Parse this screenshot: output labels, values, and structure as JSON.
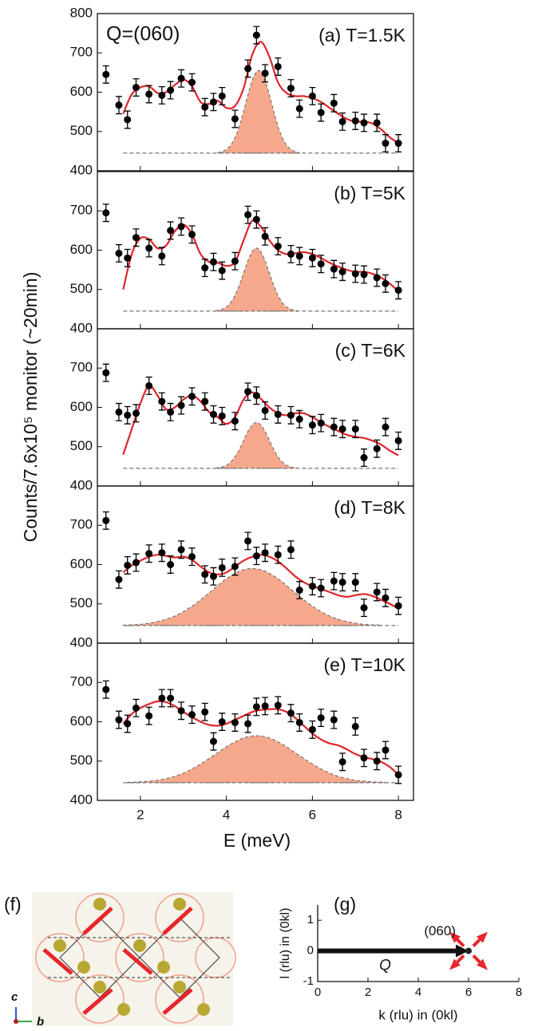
{
  "figure": {
    "ylabel": "Counts/7.6x10⁵ monitor (~20min)",
    "annotation": "Q=(060)",
    "xaxis": {
      "label": "E (meV)",
      "lim": [
        1,
        8.35
      ],
      "ticks": [
        2,
        4,
        6,
        8
      ]
    }
  },
  "panel_f": {
    "label": "(f)",
    "axis_c": "c",
    "axis_b": "b"
  },
  "chart_data": [
    {
      "type": "scatter",
      "label": "(a) T=1.5K",
      "ylim": [
        400,
        800
      ],
      "yticks": [
        400,
        500,
        600,
        700,
        800
      ],
      "baseline": 445,
      "points": {
        "color": "#000000",
        "yerr": 22,
        "x": [
          1.2,
          1.5,
          1.7,
          1.9,
          2.2,
          2.5,
          2.7,
          2.95,
          3.2,
          3.5,
          3.7,
          3.9,
          4.2,
          4.5,
          4.7,
          4.9,
          5.2,
          5.5,
          5.7,
          6.0,
          6.2,
          6.5,
          6.7,
          7.0,
          7.2,
          7.5,
          7.7,
          8.0
        ],
        "y": [
          645,
          567,
          530,
          612,
          595,
          592,
          605,
          635,
          625,
          562,
          575,
          590,
          532,
          660,
          745,
          648,
          665,
          610,
          558,
          590,
          548,
          572,
          525,
          527,
          522,
          522,
          470,
          470
        ]
      },
      "fit": {
        "color": "#e0242a",
        "x": [
          1.6,
          1.8,
          2.0,
          2.2,
          2.4,
          2.6,
          2.8,
          3.0,
          3.2,
          3.4,
          3.6,
          3.8,
          4.0,
          4.2,
          4.4,
          4.6,
          4.8,
          5.0,
          5.2,
          5.4,
          5.6,
          5.8,
          6.0,
          6.2,
          6.4,
          6.6,
          6.8,
          7.0,
          7.2,
          7.4,
          7.6,
          7.8,
          8.0
        ],
        "y": [
          545,
          595,
          612,
          615,
          598,
          600,
          618,
          632,
          615,
          575,
          570,
          578,
          560,
          565,
          610,
          695,
          728,
          690,
          625,
          598,
          590,
          590,
          585,
          575,
          560,
          545,
          532,
          525,
          525,
          520,
          505,
          485,
          470
        ]
      },
      "peak": {
        "color": "#f6a88c",
        "x": [
          3.8,
          3.9,
          4.0,
          4.1,
          4.2,
          4.3,
          4.4,
          4.5,
          4.6,
          4.7,
          4.8,
          4.9,
          5.0,
          5.1,
          5.2,
          5.3,
          5.4,
          5.5,
          5.6,
          5.7
        ],
        "y": [
          446,
          449,
          454,
          465,
          484,
          513,
          551,
          593,
          630,
          652,
          652,
          630,
          593,
          551,
          513,
          484,
          465,
          454,
          449,
          446
        ]
      }
    },
    {
      "type": "scatter",
      "label": "(b) T=5K",
      "ylim": [
        400,
        800
      ],
      "yticks": [
        400,
        500,
        600,
        700
      ],
      "baseline": 445,
      "points": {
        "color": "#000000",
        "yerr": 22,
        "x": [
          1.2,
          1.5,
          1.7,
          1.9,
          2.2,
          2.5,
          2.7,
          2.95,
          3.2,
          3.5,
          3.7,
          3.9,
          4.2,
          4.5,
          4.7,
          4.9,
          5.2,
          5.5,
          5.7,
          6.0,
          6.2,
          6.5,
          6.7,
          7.0,
          7.2,
          7.5,
          7.7,
          8.0
        ],
        "y": [
          695,
          592,
          580,
          632,
          605,
          585,
          650,
          660,
          640,
          555,
          570,
          548,
          572,
          690,
          678,
          635,
          610,
          590,
          585,
          580,
          565,
          552,
          545,
          540,
          538,
          530,
          515,
          498
        ]
      },
      "fit": {
        "color": "#e0242a",
        "x": [
          1.6,
          1.8,
          2.0,
          2.2,
          2.4,
          2.6,
          2.8,
          3.0,
          3.2,
          3.4,
          3.6,
          3.8,
          4.0,
          4.2,
          4.4,
          4.6,
          4.8,
          5.0,
          5.2,
          5.4,
          5.6,
          5.8,
          6.0,
          6.2,
          6.4,
          6.6,
          6.8,
          7.0,
          7.2,
          7.4,
          7.6,
          7.8,
          8.0
        ],
        "y": [
          500,
          590,
          630,
          628,
          605,
          612,
          648,
          665,
          640,
          590,
          570,
          568,
          560,
          570,
          625,
          675,
          660,
          625,
          600,
          590,
          592,
          595,
          590,
          580,
          568,
          558,
          550,
          545,
          545,
          540,
          530,
          515,
          495
        ]
      },
      "peak": {
        "color": "#f6a88c",
        "x": [
          3.75,
          3.85,
          3.95,
          4.05,
          4.15,
          4.25,
          4.35,
          4.45,
          4.55,
          4.65,
          4.75,
          4.85,
          4.95,
          5.05,
          5.15,
          5.25,
          5.35,
          5.45,
          5.55,
          5.65
        ],
        "y": [
          446,
          448,
          452,
          460,
          475,
          497,
          526,
          558,
          586,
          603,
          603,
          586,
          558,
          526,
          497,
          475,
          460,
          452,
          448,
          446
        ]
      }
    },
    {
      "type": "scatter",
      "label": "(c) T=6K",
      "ylim": [
        400,
        800
      ],
      "yticks": [
        400,
        500,
        600,
        700
      ],
      "baseline": 445,
      "points": {
        "color": "#000000",
        "yerr": 22,
        "x": [
          1.2,
          1.5,
          1.7,
          1.9,
          2.2,
          2.5,
          2.7,
          2.95,
          3.2,
          3.5,
          3.7,
          3.9,
          4.2,
          4.5,
          4.7,
          4.9,
          5.2,
          5.5,
          5.7,
          6.0,
          6.2,
          6.5,
          6.7,
          7.0,
          7.2,
          7.5,
          7.7,
          8.0
        ],
        "y": [
          688,
          588,
          580,
          585,
          655,
          615,
          588,
          605,
          628,
          615,
          582,
          578,
          565,
          640,
          630,
          592,
          582,
          580,
          570,
          555,
          560,
          550,
          545,
          545,
          472,
          495,
          550,
          515
        ]
      },
      "fit": {
        "color": "#e0242a",
        "x": [
          1.6,
          1.8,
          2.0,
          2.2,
          2.4,
          2.6,
          2.8,
          3.0,
          3.2,
          3.4,
          3.6,
          3.8,
          4.0,
          4.2,
          4.4,
          4.6,
          4.8,
          5.0,
          5.2,
          5.4,
          5.6,
          5.8,
          6.0,
          6.2,
          6.4,
          6.6,
          6.8,
          7.0,
          7.2,
          7.4,
          7.6,
          7.8,
          8.0
        ],
        "y": [
          480,
          545,
          610,
          655,
          630,
          595,
          600,
          620,
          630,
          615,
          588,
          575,
          558,
          575,
          620,
          638,
          622,
          600,
          585,
          580,
          585,
          585,
          575,
          562,
          550,
          540,
          530,
          525,
          522,
          515,
          505,
          490,
          478
        ]
      },
      "peak": {
        "color": "#f6a88c",
        "x": [
          3.75,
          3.85,
          3.95,
          4.05,
          4.15,
          4.25,
          4.35,
          4.45,
          4.55,
          4.65,
          4.75,
          4.85,
          4.95,
          5.05,
          5.15,
          5.25,
          5.35,
          5.45,
          5.55,
          5.65
        ],
        "y": [
          446,
          447,
          450,
          456,
          467,
          483,
          504,
          528,
          548,
          560,
          560,
          548,
          528,
          504,
          483,
          467,
          456,
          450,
          447,
          446
        ]
      }
    },
    {
      "type": "scatter",
      "label": "(d) T=8K",
      "ylim": [
        400,
        800
      ],
      "yticks": [
        400,
        500,
        600,
        700
      ],
      "baseline": 445,
      "points": {
        "color": "#000000",
        "yerr": 22,
        "x": [
          1.2,
          1.5,
          1.7,
          1.9,
          2.2,
          2.5,
          2.7,
          2.95,
          3.2,
          3.5,
          3.7,
          3.9,
          4.2,
          4.5,
          4.7,
          4.9,
          5.2,
          5.5,
          5.7,
          6.0,
          6.2,
          6.5,
          6.7,
          7.0,
          7.2,
          7.5,
          7.7,
          8.0
        ],
        "y": [
          712,
          562,
          598,
          605,
          628,
          630,
          600,
          638,
          620,
          575,
          570,
          592,
          595,
          660,
          622,
          630,
          625,
          638,
          535,
          545,
          540,
          558,
          555,
          555,
          490,
          530,
          515,
          495
        ]
      },
      "fit": {
        "color": "#e0242a",
        "x": [
          1.6,
          1.8,
          2.0,
          2.2,
          2.4,
          2.6,
          2.8,
          3.0,
          3.2,
          3.4,
          3.6,
          3.8,
          4.0,
          4.2,
          4.4,
          4.6,
          4.8,
          5.0,
          5.2,
          5.4,
          5.6,
          5.8,
          6.0,
          6.2,
          6.4,
          6.6,
          6.8,
          7.0,
          7.2,
          7.4,
          7.6,
          7.8,
          8.0
        ],
        "y": [
          580,
          598,
          610,
          620,
          625,
          622,
          618,
          620,
          612,
          595,
          580,
          575,
          580,
          595,
          610,
          620,
          625,
          620,
          608,
          590,
          570,
          555,
          545,
          538,
          530,
          522,
          518,
          522,
          525,
          520,
          510,
          500,
          488
        ]
      },
      "peak": {
        "color": "#f6a88c",
        "x": [
          1.6,
          2.0,
          2.4,
          2.8,
          3.2,
          3.6,
          4.0,
          4.4,
          4.8,
          5.2,
          5.6,
          6.0,
          6.4,
          6.8,
          7.2,
          7.6
        ],
        "y": [
          446,
          448,
          455,
          469,
          494,
          528,
          564,
          587,
          587,
          564,
          528,
          494,
          469,
          455,
          448,
          446
        ]
      }
    },
    {
      "type": "scatter",
      "label": "(e) T=10K",
      "ylim": [
        400,
        800
      ],
      "yticks": [
        400,
        500,
        600,
        700
      ],
      "baseline": 445,
      "points": {
        "color": "#000000",
        "yerr": 22,
        "x": [
          1.2,
          1.5,
          1.7,
          1.9,
          2.2,
          2.5,
          2.7,
          2.95,
          3.2,
          3.5,
          3.7,
          3.9,
          4.2,
          4.5,
          4.7,
          4.9,
          5.2,
          5.5,
          5.7,
          6.0,
          6.2,
          6.5,
          6.7,
          7.0,
          7.2,
          7.5,
          7.7,
          8.0
        ],
        "y": [
          682,
          605,
          595,
          635,
          615,
          660,
          660,
          628,
          618,
          625,
          550,
          600,
          598,
          595,
          638,
          640,
          642,
          622,
          598,
          580,
          610,
          605,
          498,
          588,
          508,
          500,
          528,
          465
        ]
      },
      "fit": {
        "color": "#e0242a",
        "x": [
          1.6,
          1.8,
          2.0,
          2.2,
          2.4,
          2.6,
          2.8,
          3.0,
          3.2,
          3.4,
          3.6,
          3.8,
          4.0,
          4.2,
          4.4,
          4.6,
          4.8,
          5.0,
          5.2,
          5.4,
          5.6,
          5.8,
          6.0,
          6.2,
          6.4,
          6.6,
          6.8,
          7.0,
          7.2,
          7.4,
          7.6,
          7.8,
          8.0
        ],
        "y": [
          595,
          620,
          635,
          645,
          652,
          650,
          640,
          625,
          612,
          600,
          592,
          590,
          595,
          605,
          615,
          625,
          630,
          632,
          632,
          625,
          610,
          590,
          570,
          555,
          545,
          540,
          530,
          518,
          510,
          505,
          498,
          485,
          465
        ]
      },
      "peak": {
        "color": "#f6a88c",
        "x": [
          1.7,
          2.1,
          2.5,
          2.9,
          3.3,
          3.7,
          4.1,
          4.5,
          4.9,
          5.3,
          5.7,
          6.1,
          6.5,
          6.9,
          7.3,
          7.7
        ],
        "y": [
          446,
          448,
          453,
          465,
          486,
          514,
          543,
          562,
          562,
          543,
          514,
          486,
          465,
          453,
          448,
          446
        ]
      }
    },
    {
      "type": "vector",
      "label": "(g)",
      "xlabel": "k (rlu) in (0kl)",
      "ylabel": "l (rlu) in (0kl)",
      "xlim": [
        0,
        8
      ],
      "ylim": [
        -1,
        1.5
      ],
      "xticks": [
        0,
        2,
        4,
        6,
        8
      ],
      "yticks": [
        -1,
        0,
        1
      ],
      "vector": {
        "x": [
          0,
          6
        ],
        "y": [
          0,
          0
        ],
        "label": "Q",
        "color": "#111111"
      },
      "point_label": "(060)"
    }
  ]
}
